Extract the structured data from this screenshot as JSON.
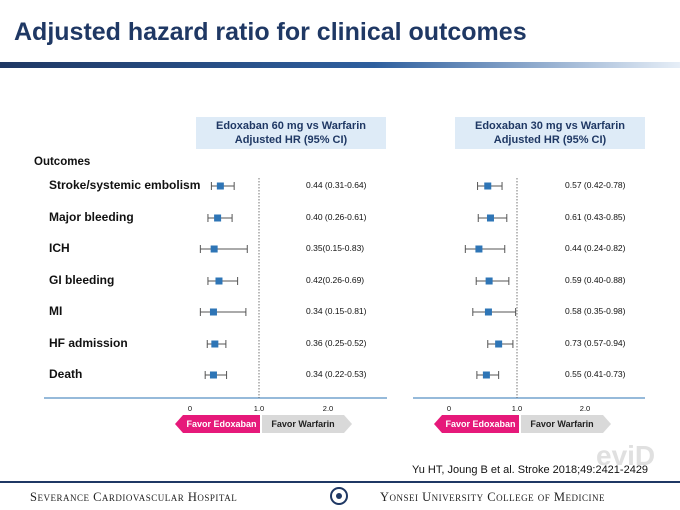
{
  "title": "Adjusted hazard ratio for clinical outcomes",
  "outcomes_header": "Outcomes",
  "panels": [
    {
      "header_line1": "Edoxaban 60 mg vs Warfarin",
      "header_line2": "Adjusted HR (95% CI)"
    },
    {
      "header_line1": "Edoxaban 30 mg vs Warfarin",
      "header_line2": "Adjusted HR (95% CI)"
    }
  ],
  "axis_ticks": [
    "0",
    "1.0",
    "2.0"
  ],
  "favor_left": "Favor Edoxaban",
  "favor_right": "Favor Warfarin",
  "citation": "Yu HT, Joung B et al. Stroke 2018;49:2421-2429",
  "footer_left": "Severance Cardiovascular Hospital",
  "footer_right": "Yonsei University College of Medicine",
  "watermark": "eviD",
  "colors": {
    "marker": "#2e75b6",
    "favor_left": "#e6197a",
    "favor_right": "#d9d9d9",
    "header_bg": "#deebf7",
    "title": "#1f3864"
  },
  "chart_data": [
    {
      "type": "forest",
      "title": "Edoxaban 60 mg vs Warfarin",
      "xlabel": "Adjusted HR (95% CI)",
      "xlim": [
        0,
        2.0
      ],
      "reference_line": 1.0,
      "categories": [
        "Stroke/systemic embolism",
        "Major bleeding",
        "ICH",
        "GI bleeding",
        "MI",
        "HF admission",
        "Death"
      ],
      "hr": [
        0.44,
        0.4,
        0.35,
        0.42,
        0.34,
        0.36,
        0.34
      ],
      "ci_low": [
        0.31,
        0.26,
        0.15,
        0.26,
        0.15,
        0.25,
        0.22
      ],
      "ci_high": [
        0.64,
        0.61,
        0.83,
        0.69,
        0.81,
        0.52,
        0.53
      ],
      "labels": [
        "0.44 (0.31-0.64)",
        "0.40 (0.26-0.61)",
        "0.35(0.15-0.83)",
        "0.42(0.26-0.69)",
        "0.34 (0.15-0.81)",
        "0.36 (0.25-0.52)",
        "0.34 (0.22-0.53)"
      ]
    },
    {
      "type": "forest",
      "title": "Edoxaban 30 mg vs Warfarin",
      "xlabel": "Adjusted HR (95% CI)",
      "xlim": [
        0,
        2.0
      ],
      "reference_line": 1.0,
      "categories": [
        "Stroke/systemic embolism",
        "Major bleeding",
        "ICH",
        "GI bleeding",
        "MI",
        "HF admission",
        "Death"
      ],
      "hr": [
        0.57,
        0.61,
        0.44,
        0.59,
        0.58,
        0.73,
        0.55
      ],
      "ci_low": [
        0.42,
        0.43,
        0.24,
        0.4,
        0.35,
        0.57,
        0.41
      ],
      "ci_high": [
        0.78,
        0.85,
        0.82,
        0.88,
        0.98,
        0.94,
        0.73
      ],
      "labels": [
        "0.57 (0.42-0.78)",
        "0.61 (0.43-0.85)",
        "0.44 (0.24-0.82)",
        "0.59 (0.40-0.88)",
        "0.58 (0.35-0.98)",
        "0.73 (0.57-0.94)",
        "0.55 (0.41-0.73)"
      ]
    }
  ]
}
